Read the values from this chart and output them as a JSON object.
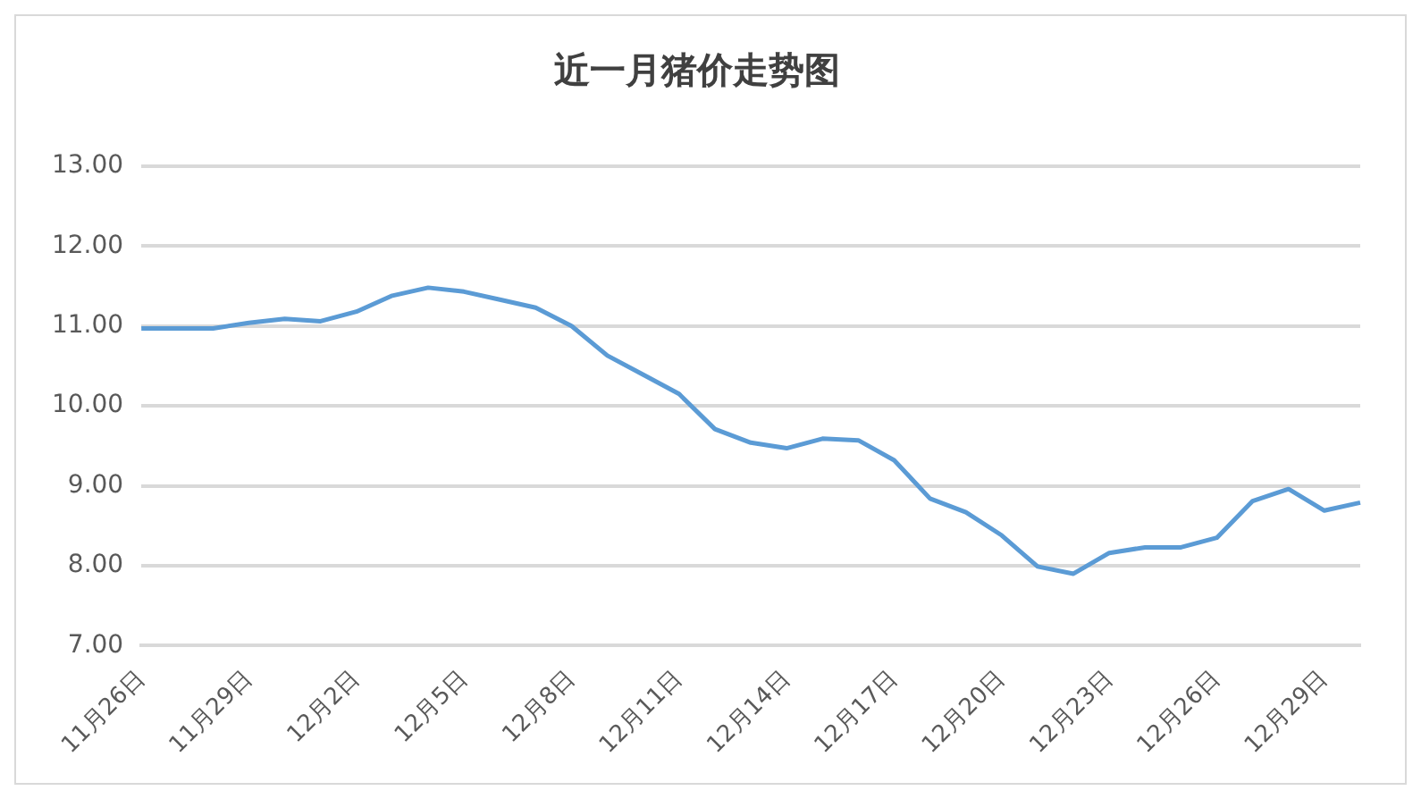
{
  "chart_data": {
    "type": "line",
    "title": "近一月猪价走势图",
    "categories": [
      "11月26日",
      null,
      null,
      "11月29日",
      null,
      null,
      "12月2日",
      null,
      null,
      "12月5日",
      null,
      null,
      "12月8日",
      null,
      null,
      "12月11日",
      null,
      null,
      "12月14日",
      null,
      null,
      "12月17日",
      null,
      null,
      "12月20日",
      null,
      null,
      "12月23日",
      null,
      null,
      "12月26日",
      null,
      null,
      "12月29日",
      null
    ],
    "series": [
      {
        "color": "#5b9bd5",
        "values": [
          10.97,
          10.97,
          10.97,
          11.04,
          11.09,
          11.06,
          11.18,
          11.38,
          11.48,
          11.43,
          11.33,
          11.23,
          11.0,
          10.63,
          10.39,
          10.15,
          9.71,
          9.54,
          9.47,
          9.59,
          9.57,
          9.32,
          8.84,
          8.67,
          8.38,
          7.99,
          7.9,
          8.16,
          8.23,
          8.23,
          8.35,
          8.81,
          8.96,
          8.69,
          8.79
        ]
      }
    ],
    "ylim": [
      7,
      13
    ],
    "yticks": [
      {
        "value": 7,
        "label": "7.00"
      },
      {
        "value": 8,
        "label": "8.00"
      },
      {
        "value": 9,
        "label": "9.00"
      },
      {
        "value": 10,
        "label": "10.00"
      },
      {
        "value": 11,
        "label": "11.00"
      },
      {
        "value": 12,
        "label": "12.00"
      },
      {
        "value": 13,
        "label": "13.00"
      }
    ],
    "grid": "y",
    "legend": false,
    "marker": "none",
    "line_style": "solid"
  }
}
